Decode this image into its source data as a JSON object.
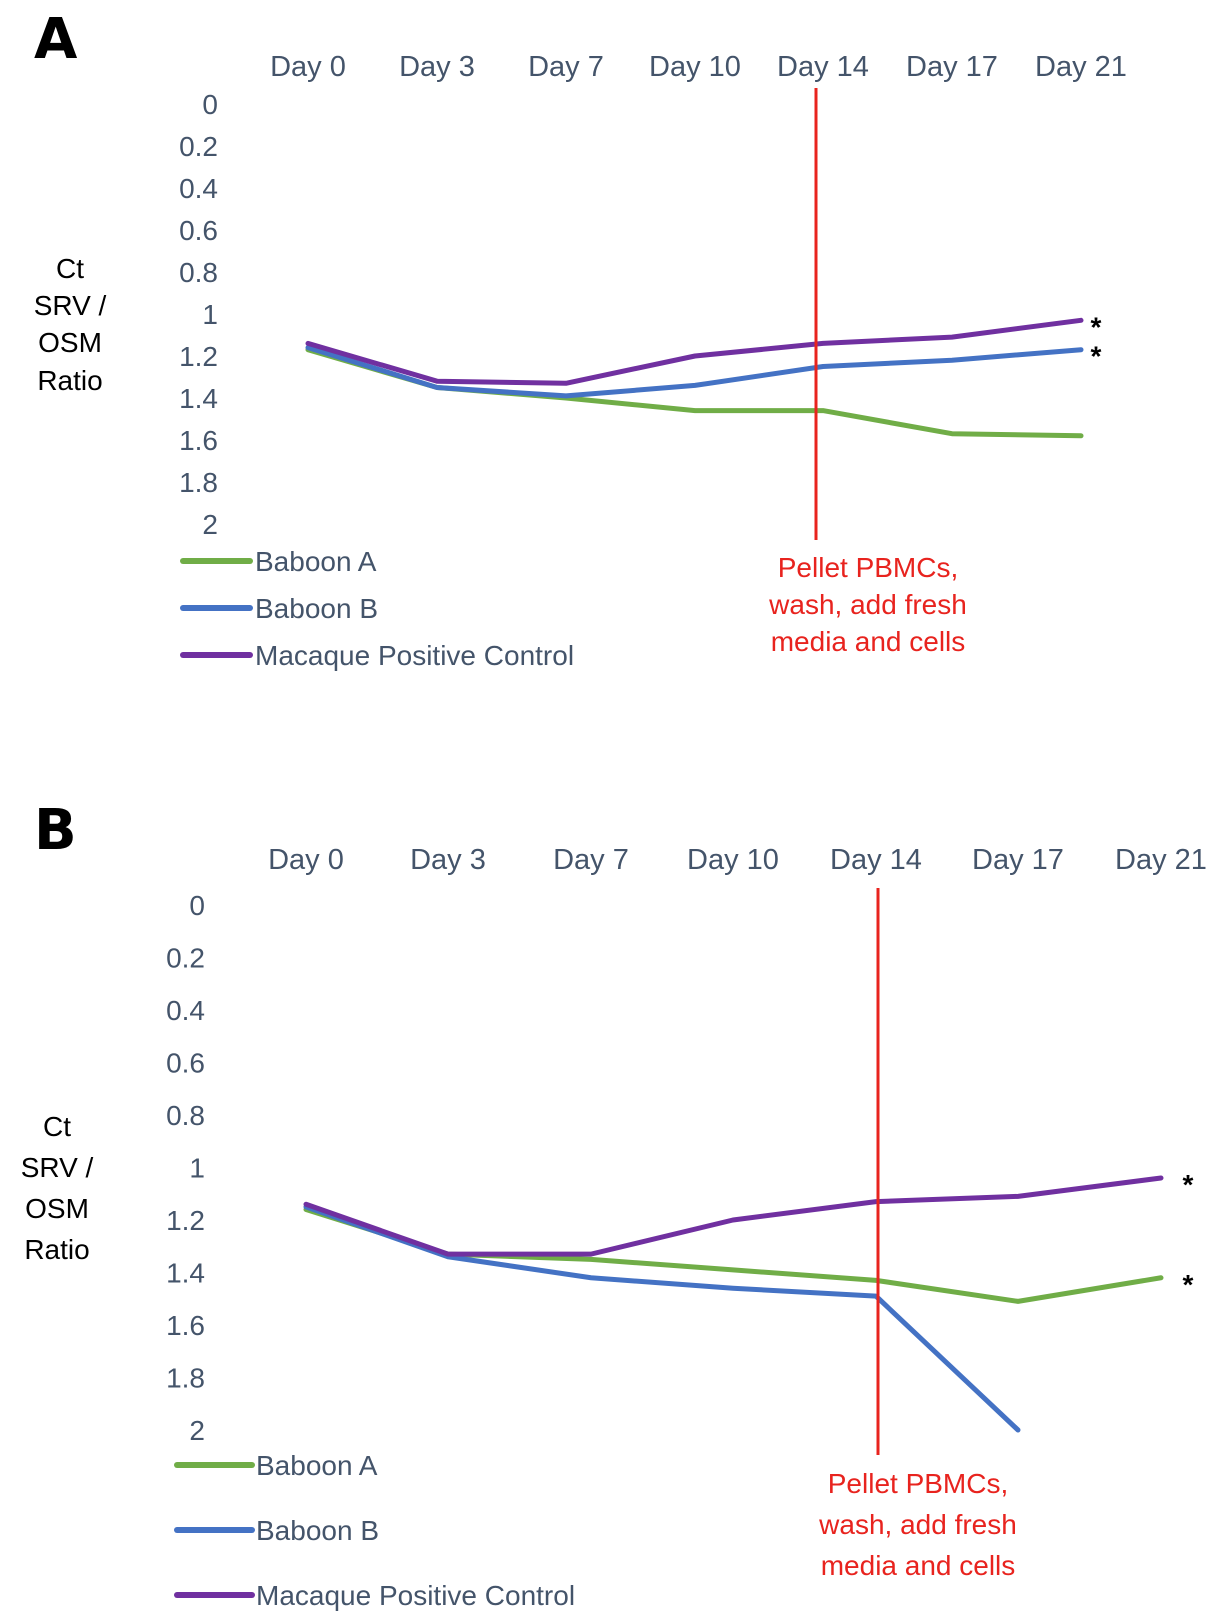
{
  "chart_data": [
    {
      "type": "line",
      "panel_label": "A",
      "categories": [
        "Day 0",
        "Day 3",
        "Day 7",
        "Day 10",
        "Day 14",
        "Day 17",
        "Day 21"
      ],
      "y_ticks": [
        "0",
        "0.2",
        "0.4",
        "0.6",
        "0.8",
        "1",
        "1.2",
        "1.4",
        "1.6",
        "1.8",
        "2"
      ],
      "ylim": [
        0,
        2
      ],
      "y_inverted": true,
      "ylabel": [
        "Ct",
        "SRV /",
        "OSM",
        "Ratio"
      ],
      "series": [
        {
          "name": "Baboon A",
          "color": "#70ad47",
          "values": [
            1.17,
            1.35,
            1.4,
            1.46,
            1.46,
            1.57,
            1.58
          ]
        },
        {
          "name": "Baboon B",
          "color": "#4472c4",
          "values": [
            1.16,
            1.35,
            1.39,
            1.34,
            1.25,
            1.22,
            1.17
          ]
        },
        {
          "name": "Macaque Positive Control",
          "color": "#7030a0",
          "values": [
            1.14,
            1.32,
            1.33,
            1.2,
            1.14,
            1.11,
            1.03
          ]
        }
      ],
      "series_end_marks": [
        "*",
        "*",
        null
      ],
      "series_end_marks_order": [
        "Macaque Positive Control",
        "Baboon B"
      ],
      "vline": {
        "at_category": "Day 14",
        "color": "#e8231e"
      },
      "annotation": [
        "Pellet PBMCs,",
        "wash,  add fresh",
        "media and cells"
      ],
      "legend_placement": "bottom-left",
      "grid": false
    },
    {
      "type": "line",
      "panel_label": "B",
      "categories": [
        "Day 0",
        "Day 3",
        "Day 7",
        "Day 10",
        "Day 14",
        "Day 17",
        "Day 21"
      ],
      "y_ticks": [
        "0",
        "0.2",
        "0.4",
        "0.6",
        "0.8",
        "1",
        "1.2",
        "1.4",
        "1.6",
        "1.8",
        "2"
      ],
      "ylim": [
        0,
        2
      ],
      "y_inverted": true,
      "ylabel": [
        "Ct",
        "SRV /",
        "OSM",
        "Ratio"
      ],
      "series": [
        {
          "name": "Baboon A",
          "color": "#70ad47",
          "values": [
            1.16,
            1.33,
            1.35,
            1.39,
            1.43,
            1.51,
            1.42
          ]
        },
        {
          "name": "Baboon B",
          "color": "#4472c4",
          "values": [
            1.15,
            1.34,
            1.42,
            1.46,
            1.49,
            2.0,
            null
          ]
        },
        {
          "name": "Macaque Positive Control",
          "color": "#7030a0",
          "values": [
            1.14,
            1.33,
            1.33,
            1.2,
            1.13,
            1.11,
            1.04
          ]
        }
      ],
      "series_end_marks_order": [
        "Macaque Positive Control",
        "Baboon A"
      ],
      "vline": {
        "at_category": "Day 14",
        "color": "#e8231e"
      },
      "annotation": [
        "Pellet PBMCs,",
        "wash,  add fresh",
        "media and cells"
      ],
      "legend_placement": "bottom-left",
      "grid": false
    }
  ],
  "star_symbol": "*"
}
